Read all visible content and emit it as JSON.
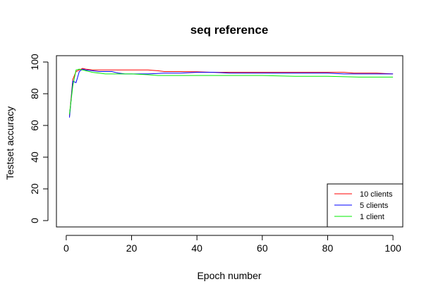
{
  "chart_data": {
    "type": "line",
    "title": "seq reference",
    "xlabel": "Epoch number",
    "ylabel": "Testset accuracy",
    "xlim": [
      -3,
      103
    ],
    "ylim": [
      -4,
      104
    ],
    "xticks": [
      0,
      20,
      40,
      60,
      80,
      100
    ],
    "yticks": [
      0,
      20,
      40,
      60,
      80,
      100
    ],
    "grid": false,
    "legend_position": "bottom-right",
    "series": [
      {
        "name": "10 clients",
        "color": "#ff0000",
        "points": [
          [
            1,
            66
          ],
          [
            2,
            89
          ],
          [
            3,
            94
          ],
          [
            4,
            95
          ],
          [
            5,
            96
          ],
          [
            6,
            95.5
          ],
          [
            8,
            95
          ],
          [
            12,
            95
          ],
          [
            16,
            95
          ],
          [
            20,
            95
          ],
          [
            25,
            95
          ],
          [
            28,
            94.5
          ],
          [
            30,
            94
          ],
          [
            35,
            94
          ],
          [
            40,
            93.8
          ],
          [
            45,
            93.5
          ],
          [
            50,
            93.5
          ],
          [
            55,
            93.5
          ],
          [
            60,
            93.5
          ],
          [
            65,
            93.5
          ],
          [
            70,
            93.5
          ],
          [
            75,
            93.5
          ],
          [
            80,
            93.5
          ],
          [
            85,
            93.5
          ],
          [
            88,
            93
          ],
          [
            90,
            93
          ],
          [
            95,
            93
          ],
          [
            100,
            92.5
          ]
        ]
      },
      {
        "name": "5 clients",
        "color": "#0000ff",
        "points": [
          [
            1,
            65
          ],
          [
            2,
            88
          ],
          [
            3,
            87
          ],
          [
            4,
            94
          ],
          [
            5,
            95.5
          ],
          [
            6,
            95
          ],
          [
            8,
            94.5
          ],
          [
            10,
            94
          ],
          [
            14,
            94
          ],
          [
            16,
            93
          ],
          [
            18,
            92.5
          ],
          [
            20,
            92.5
          ],
          [
            25,
            92.5
          ],
          [
            30,
            93
          ],
          [
            35,
            93
          ],
          [
            40,
            93.5
          ],
          [
            45,
            93.5
          ],
          [
            50,
            93
          ],
          [
            55,
            93
          ],
          [
            60,
            93
          ],
          [
            65,
            93
          ],
          [
            70,
            93
          ],
          [
            75,
            93
          ],
          [
            80,
            93
          ],
          [
            85,
            92.5
          ],
          [
            90,
            92.5
          ],
          [
            95,
            92.5
          ],
          [
            100,
            92.5
          ]
        ]
      },
      {
        "name": "1 client",
        "color": "#00ee00",
        "points": [
          [
            1,
            67
          ],
          [
            2,
            85
          ],
          [
            3,
            95
          ],
          [
            4,
            95.5
          ],
          [
            5,
            95
          ],
          [
            6,
            94.5
          ],
          [
            8,
            93.5
          ],
          [
            10,
            93
          ],
          [
            12,
            92.5
          ],
          [
            15,
            92.5
          ],
          [
            20,
            92.5
          ],
          [
            25,
            92
          ],
          [
            28,
            91.5
          ],
          [
            30,
            91.5
          ],
          [
            40,
            91.5
          ],
          [
            50,
            91.5
          ],
          [
            60,
            91.5
          ],
          [
            70,
            91
          ],
          [
            80,
            91
          ],
          [
            90,
            90.5
          ],
          [
            100,
            90.5
          ]
        ]
      }
    ]
  }
}
